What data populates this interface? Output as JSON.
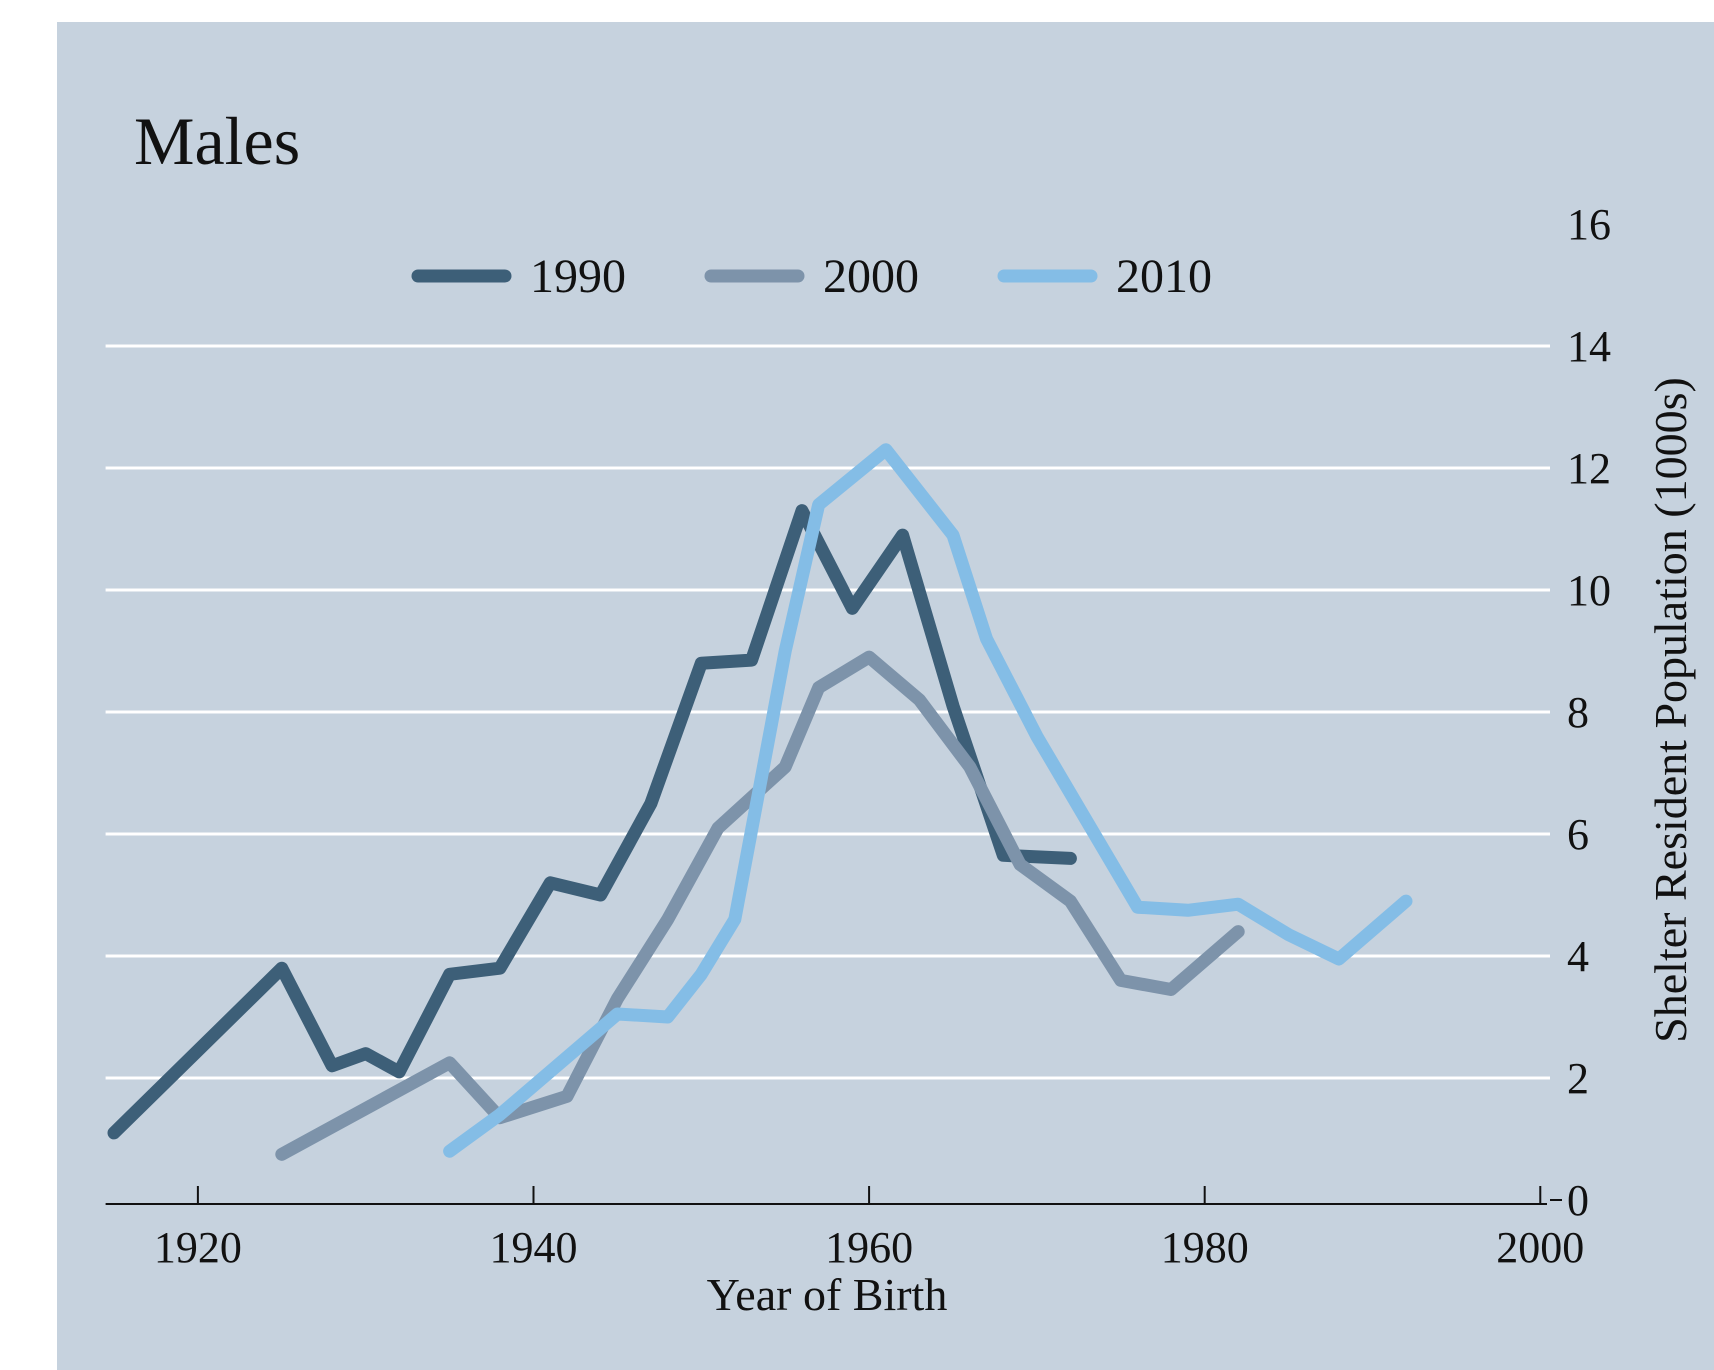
{
  "chart_data": {
    "type": "line",
    "title": "Males",
    "x_label": "Year of Birth",
    "y_label": "Shelter Resident Population (1000s)",
    "xlim": [
      1914.5,
      2000.4
    ],
    "xticks": [
      1920,
      1940,
      1960,
      1980,
      2000
    ],
    "ylim": [
      0,
      16
    ],
    "yticks": [
      0,
      2,
      4,
      6,
      8,
      10,
      12,
      14,
      16
    ],
    "grid": true,
    "legend": "top",
    "series": [
      {
        "name": "1990",
        "color": "#3d5f78",
        "x": [
          1915,
          1925,
          1928,
          1930,
          1932,
          1935,
          1938,
          1941,
          1944,
          1947,
          1950,
          1953,
          1956,
          1959,
          1962,
          1965,
          1968,
          1972
        ],
        "values": [
          1.1,
          3.8,
          2.2,
          2.4,
          2.1,
          3.7,
          3.8,
          5.2,
          5.0,
          6.5,
          8.8,
          8.85,
          11.3,
          9.7,
          10.9,
          8.1,
          5.65,
          5.6
        ]
      },
      {
        "name": "2000",
        "color": "#7d93aa",
        "x": [
          1925,
          1935,
          1938,
          1942,
          1945,
          1948,
          1951,
          1955,
          1957,
          1960,
          1963,
          1966,
          1969,
          1972,
          1975,
          1978,
          1982
        ],
        "values": [
          0.75,
          2.25,
          1.35,
          1.7,
          3.3,
          4.6,
          6.1,
          7.1,
          8.4,
          8.9,
          8.2,
          7.1,
          5.5,
          4.9,
          3.6,
          3.45,
          4.4
        ]
      },
      {
        "name": "2010",
        "color": "#84bde6",
        "x": [
          1935,
          1938,
          1945,
          1948,
          1950,
          1952,
          1955,
          1957,
          1961,
          1965,
          1967,
          1970,
          1973,
          1976,
          1979,
          1982,
          1985,
          1988,
          1992
        ],
        "values": [
          0.8,
          1.4,
          3.05,
          3.0,
          3.7,
          4.6,
          9.0,
          11.4,
          12.3,
          10.9,
          9.2,
          7.6,
          6.2,
          4.8,
          4.75,
          4.85,
          4.35,
          3.95,
          4.9
        ]
      }
    ]
  }
}
